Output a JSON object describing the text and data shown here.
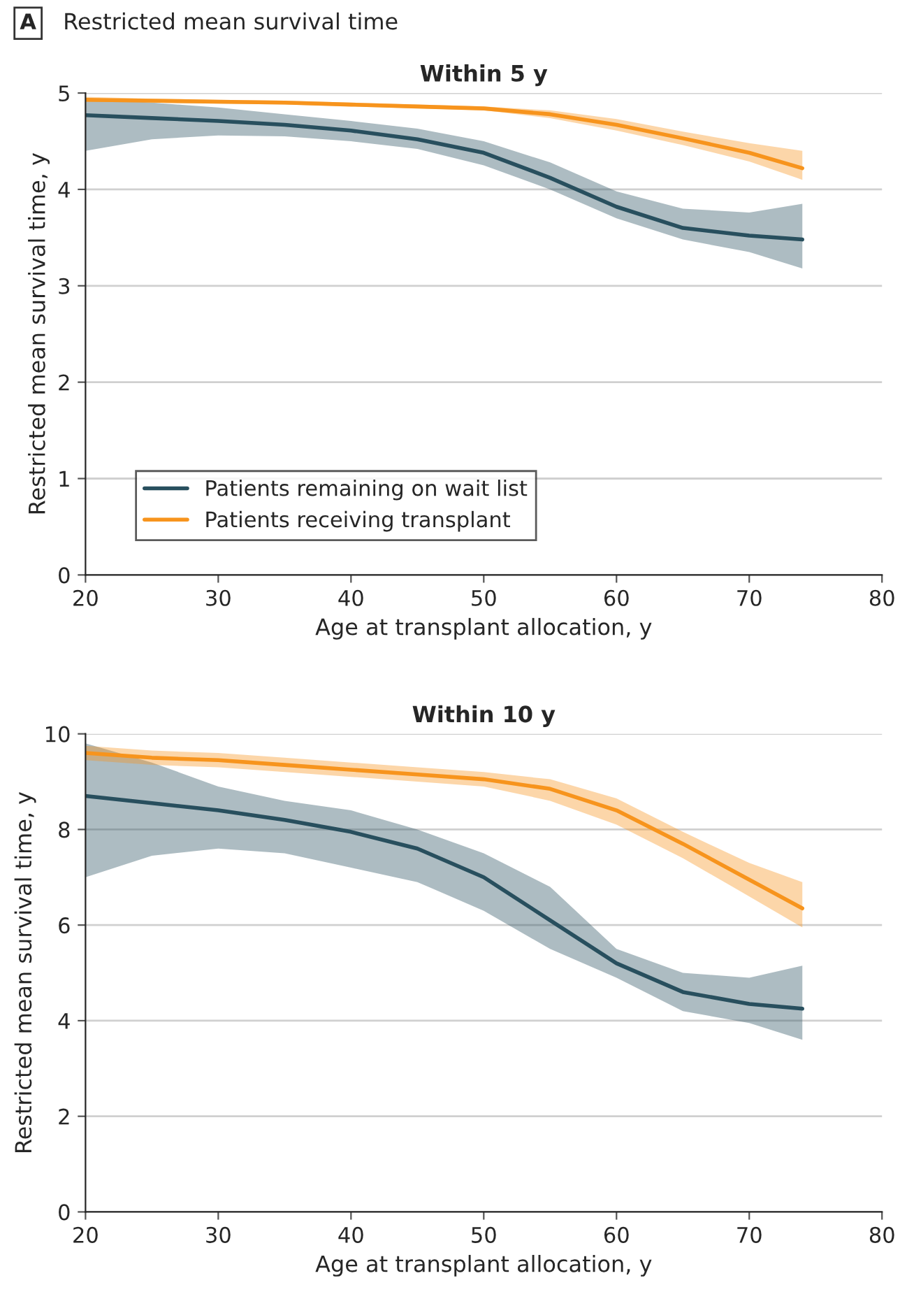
{
  "chart_data": [
    {
      "type": "line",
      "title": "Within 5 y",
      "xlabel": "Age at transplant allocation, y",
      "ylabel": "Restricted mean survival time, y",
      "annotations": [
        "A",
        "Restricted mean survival time"
      ],
      "x": [
        20,
        25,
        30,
        35,
        40,
        45,
        50,
        55,
        60,
        65,
        70,
        74
      ],
      "xlim": [
        20,
        80
      ],
      "xticks": [
        20,
        30,
        40,
        50,
        60,
        70,
        80
      ],
      "ylim": [
        0,
        5
      ],
      "yticks": [
        0,
        1,
        2,
        3,
        4,
        5
      ],
      "grid": "y",
      "legend": "bottom left",
      "series": [
        {
          "name": "Patients remaining on wait list",
          "color": "#284f5e",
          "values": [
            4.77,
            4.74,
            4.71,
            4.67,
            4.61,
            4.52,
            4.38,
            4.12,
            3.82,
            3.6,
            3.52,
            3.48
          ],
          "lower": [
            4.4,
            4.52,
            4.56,
            4.55,
            4.5,
            4.42,
            4.25,
            4.0,
            3.7,
            3.48,
            3.35,
            3.18
          ],
          "upper": [
            4.95,
            4.9,
            4.85,
            4.78,
            4.71,
            4.63,
            4.5,
            4.28,
            3.98,
            3.8,
            3.76,
            3.85
          ]
        },
        {
          "name": "Patients receiving transplant",
          "color": "#f7941d",
          "values": [
            4.93,
            4.92,
            4.91,
            4.9,
            4.88,
            4.86,
            4.84,
            4.78,
            4.67,
            4.53,
            4.38,
            4.22
          ],
          "lower": [
            4.91,
            4.9,
            4.89,
            4.88,
            4.86,
            4.84,
            4.82,
            4.74,
            4.61,
            4.46,
            4.29,
            4.1
          ],
          "upper": [
            4.96,
            4.94,
            4.93,
            4.92,
            4.9,
            4.88,
            4.86,
            4.82,
            4.73,
            4.6,
            4.48,
            4.4
          ]
        }
      ]
    },
    {
      "type": "line",
      "title": "Within 10 y",
      "xlabel": "Age at transplant allocation, y",
      "ylabel": "Restricted mean survival time, y",
      "x": [
        20,
        25,
        30,
        35,
        40,
        45,
        50,
        55,
        60,
        65,
        70,
        74
      ],
      "xlim": [
        20,
        80
      ],
      "xticks": [
        20,
        30,
        40,
        50,
        60,
        70,
        80
      ],
      "ylim": [
        0,
        10
      ],
      "yticks": [
        0,
        2,
        4,
        6,
        8,
        10
      ],
      "grid": "y",
      "series": [
        {
          "color": "#284f5e",
          "values": [
            8.7,
            8.55,
            8.4,
            8.2,
            7.95,
            7.6,
            7.0,
            6.1,
            5.2,
            4.6,
            4.35,
            4.25
          ],
          "lower": [
            7.0,
            7.45,
            7.6,
            7.5,
            7.2,
            6.9,
            6.3,
            5.5,
            4.9,
            4.2,
            3.95,
            3.6
          ],
          "upper": [
            9.8,
            9.4,
            8.9,
            8.6,
            8.4,
            8.0,
            7.5,
            6.8,
            5.5,
            5.0,
            4.9,
            5.15
          ]
        },
        {
          "color": "#f7941d",
          "values": [
            9.6,
            9.5,
            9.45,
            9.35,
            9.25,
            9.15,
            9.05,
            8.85,
            8.4,
            7.7,
            6.95,
            6.35
          ],
          "lower": [
            9.45,
            9.35,
            9.3,
            9.2,
            9.1,
            9.0,
            8.9,
            8.6,
            8.1,
            7.4,
            6.6,
            5.95
          ],
          "upper": [
            9.75,
            9.65,
            9.6,
            9.5,
            9.4,
            9.3,
            9.2,
            9.05,
            8.65,
            7.95,
            7.3,
            6.9
          ]
        }
      ]
    }
  ]
}
